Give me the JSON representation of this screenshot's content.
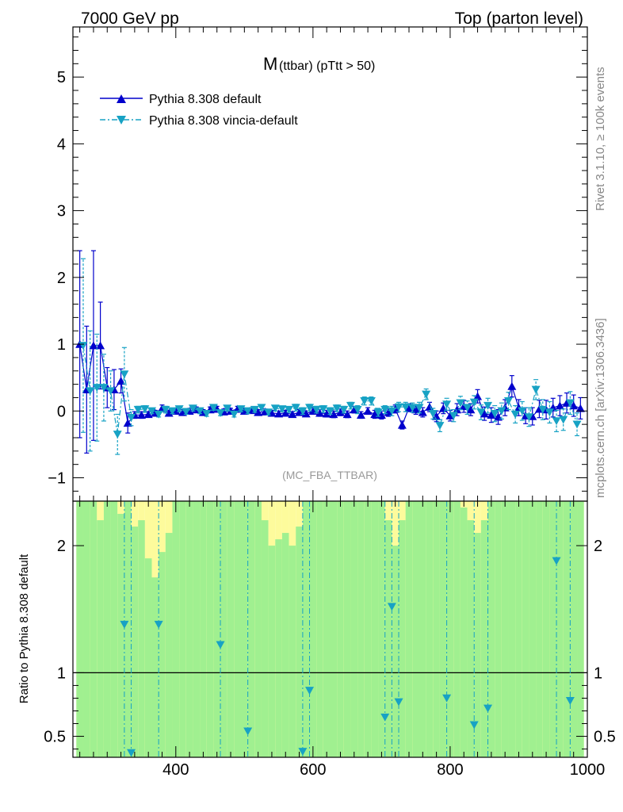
{
  "header": {
    "left": "7000 GeV pp",
    "right": "Top (parton level)"
  },
  "side_labels": {
    "rivet": "Rivet 3.1.10, ≥ 100k events",
    "mcplots": "mcplots.cern.ch [arXiv:1306.3436]"
  },
  "watermark": "(MC_FBA_TTBAR)",
  "chart_data": [
    {
      "type": "line",
      "title_main": "M",
      "title_sub": "(ttbar) (pTtt > 50)",
      "xlim": [
        250,
        1000
      ],
      "ylim": [
        -1.35,
        5.75
      ],
      "xticks": [
        400,
        600,
        800,
        1000
      ],
      "yticks": [
        -1,
        0,
        1,
        2,
        3,
        4,
        5
      ],
      "legend": "top-left",
      "series": [
        {
          "name": "Pythia 8.308 default",
          "color": "#0000cc",
          "marker": "triangle-up",
          "line": "solid",
          "x": [
            260,
            270,
            280,
            290,
            300,
            310,
            320,
            330,
            340,
            350,
            360,
            370,
            380,
            390,
            400,
            410,
            420,
            430,
            440,
            450,
            460,
            470,
            480,
            490,
            500,
            510,
            520,
            530,
            540,
            550,
            560,
            570,
            580,
            590,
            600,
            610,
            620,
            630,
            640,
            650,
            660,
            670,
            680,
            690,
            700,
            710,
            720,
            730,
            740,
            750,
            760,
            770,
            780,
            790,
            800,
            810,
            820,
            830,
            840,
            850,
            860,
            870,
            880,
            890,
            900,
            910,
            920,
            930,
            940,
            950,
            960,
            970,
            980,
            990
          ],
          "y": [
            1.0,
            0.32,
            0.98,
            0.98,
            0.35,
            0.32,
            0.45,
            -0.18,
            -0.06,
            -0.06,
            -0.05,
            -0.03,
            0.04,
            -0.03,
            0.0,
            -0.02,
            0.0,
            0.02,
            -0.02,
            0.02,
            0.03,
            -0.01,
            0.0,
            0.03,
            0.0,
            0.01,
            -0.02,
            -0.01,
            -0.03,
            -0.04,
            -0.03,
            -0.05,
            -0.02,
            -0.04,
            0.0,
            -0.03,
            -0.04,
            -0.05,
            -0.02,
            -0.05,
            0.02,
            -0.06,
            0.0,
            -0.05,
            -0.06,
            -0.02,
            0.03,
            -0.21,
            0.05,
            0.02,
            -0.02,
            0.06,
            -0.08,
            0.04,
            -0.07,
            0.02,
            0.07,
            0.02,
            0.22,
            -0.04,
            -0.06,
            -0.09,
            0.05,
            0.37,
            0.05,
            -0.07,
            -0.08,
            0.03,
            0.02,
            0.05,
            0.08,
            0.12,
            0.08,
            0.04
          ],
          "yerr": [
            1.4,
            0.95,
            1.42,
            0.65,
            0.3,
            0.3,
            0.18,
            0.15,
            0.05,
            0.05,
            0.04,
            0.04,
            0.05,
            0.04,
            0.04,
            0.04,
            0.04,
            0.04,
            0.04,
            0.04,
            0.04,
            0.04,
            0.04,
            0.04,
            0.04,
            0.04,
            0.04,
            0.04,
            0.04,
            0.04,
            0.04,
            0.04,
            0.04,
            0.04,
            0.05,
            0.05,
            0.05,
            0.05,
            0.05,
            0.05,
            0.05,
            0.05,
            0.05,
            0.06,
            0.06,
            0.06,
            0.06,
            0.06,
            0.06,
            0.07,
            0.07,
            0.07,
            0.08,
            0.08,
            0.08,
            0.09,
            0.09,
            0.09,
            0.1,
            0.1,
            0.11,
            0.11,
            0.12,
            0.16,
            0.12,
            0.12,
            0.13,
            0.13,
            0.14,
            0.14,
            0.15,
            0.15,
            0.16,
            0.16
          ]
        },
        {
          "name": "Pythia 8.308 vincia-default",
          "color": "#17a2c4",
          "marker": "triangle-down",
          "line": "dash-dot",
          "x": [
            265,
            275,
            285,
            295,
            305,
            315,
            325,
            335,
            345,
            355,
            365,
            375,
            385,
            395,
            405,
            415,
            425,
            435,
            445,
            455,
            465,
            475,
            485,
            495,
            505,
            515,
            525,
            535,
            545,
            555,
            565,
            575,
            585,
            595,
            605,
            615,
            625,
            635,
            645,
            655,
            665,
            675,
            685,
            695,
            705,
            715,
            725,
            735,
            745,
            755,
            765,
            775,
            785,
            795,
            805,
            815,
            825,
            835,
            845,
            855,
            865,
            875,
            885,
            895,
            905,
            915,
            925,
            935,
            945,
            955,
            965,
            975,
            985
          ],
          "y": [
            0.98,
            0.3,
            0.35,
            0.35,
            0.3,
            -0.35,
            0.55,
            -0.1,
            0.02,
            0.03,
            0.0,
            -0.05,
            0.02,
            0.0,
            0.03,
            -0.01,
            0.04,
            0.0,
            -0.04,
            0.05,
            -0.03,
            0.04,
            -0.05,
            0.03,
            0.0,
            0.02,
            0.05,
            -0.02,
            0.04,
            0.03,
            0.02,
            0.05,
            0.0,
            0.05,
            0.02,
            0.03,
            0.0,
            0.04,
            0.02,
            0.08,
            0.02,
            0.15,
            0.15,
            -0.02,
            0.02,
            0.0,
            0.06,
            0.06,
            0.05,
            0.05,
            0.25,
            -0.04,
            -0.22,
            0.1,
            -0.07,
            0.12,
            0.05,
            0.13,
            -0.02,
            0.08,
            -0.04,
            0.0,
            0.15,
            -0.05,
            0.0,
            -0.09,
            0.32,
            0.02,
            -0.02,
            -0.15,
            -0.13,
            0.12,
            -0.2
          ],
          "yerr": [
            1.3,
            0.9,
            0.8,
            0.5,
            0.3,
            0.3,
            0.4,
            0.12,
            0.05,
            0.05,
            0.04,
            0.04,
            0.05,
            0.04,
            0.04,
            0.04,
            0.04,
            0.04,
            0.04,
            0.04,
            0.04,
            0.04,
            0.04,
            0.04,
            0.04,
            0.04,
            0.04,
            0.04,
            0.04,
            0.04,
            0.04,
            0.05,
            0.05,
            0.05,
            0.05,
            0.05,
            0.05,
            0.05,
            0.05,
            0.05,
            0.06,
            0.06,
            0.06,
            0.06,
            0.06,
            0.07,
            0.07,
            0.07,
            0.07,
            0.08,
            0.08,
            0.08,
            0.09,
            0.09,
            0.09,
            0.1,
            0.1,
            0.1,
            0.11,
            0.11,
            0.12,
            0.12,
            0.13,
            0.13,
            0.14,
            0.14,
            0.15,
            0.15,
            0.16,
            0.16,
            0.16,
            0.17,
            0.17
          ]
        }
      ]
    },
    {
      "type": "line",
      "ylabel": "Ratio to Pythia 8.308 default",
      "xlim": [
        250,
        1000
      ],
      "ylim": [
        0.335,
        2.35
      ],
      "xticks": [
        400,
        600,
        800,
        1000
      ],
      "yticks": [
        0.5,
        1,
        2
      ],
      "reference_line": 1,
      "band_colors": {
        "inner": "#a0f090",
        "outer": "#fdfb9c"
      },
      "series": [
        {
          "name": "Pythia 8.308 vincia-default",
          "color": "#17a2c4",
          "marker": "triangle-down",
          "line": "dash-dot",
          "x": [
            325,
            335,
            375,
            465,
            505,
            585,
            595,
            705,
            715,
            725,
            795,
            835,
            855,
            955,
            975
          ],
          "y": [
            1.38,
            0.37,
            1.38,
            1.22,
            0.54,
            0.38,
            0.86,
            0.65,
            1.52,
            0.77,
            0.8,
            0.59,
            0.72,
            1.88,
            0.78
          ]
        }
      ],
      "bands": [
        {
          "x0": 255,
          "x1": 265,
          "outer": 2.35,
          "inner": 2.35
        },
        {
          "x0": 265,
          "x1": 275,
          "outer": 2.35,
          "inner": 2.35
        },
        {
          "x0": 275,
          "x1": 285,
          "outer": 2.35,
          "inner": 2.35
        },
        {
          "x0": 285,
          "x1": 295,
          "outer": 2.35,
          "inner": 2.2
        },
        {
          "x0": 295,
          "x1": 305,
          "outer": 2.35,
          "inner": 2.35
        },
        {
          "x0": 305,
          "x1": 315,
          "outer": 2.35,
          "inner": 2.35
        },
        {
          "x0": 315,
          "x1": 325,
          "outer": 2.35,
          "inner": 2.25
        },
        {
          "x0": 325,
          "x1": 335,
          "outer": 2.35,
          "inner": 2.35
        },
        {
          "x0": 335,
          "x1": 345,
          "outer": 2.35,
          "inner": 2.15
        },
        {
          "x0": 345,
          "x1": 355,
          "outer": 2.35,
          "inner": 2.2
        },
        {
          "x0": 355,
          "x1": 365,
          "outer": 2.35,
          "inner": 1.9
        },
        {
          "x0": 365,
          "x1": 375,
          "outer": 2.35,
          "inner": 1.75
        },
        {
          "x0": 375,
          "x1": 385,
          "outer": 2.35,
          "inner": 1.95
        },
        {
          "x0": 385,
          "x1": 395,
          "outer": 2.35,
          "inner": 2.1
        },
        {
          "x0": 395,
          "x1": 405,
          "outer": 2.35,
          "inner": 2.35
        },
        {
          "x0": 405,
          "x1": 415,
          "outer": 2.35,
          "inner": 2.35
        },
        {
          "x0": 415,
          "x1": 425,
          "outer": 2.35,
          "inner": 2.35
        },
        {
          "x0": 425,
          "x1": 435,
          "outer": 2.35,
          "inner": 2.35
        },
        {
          "x0": 435,
          "x1": 445,
          "outer": 2.35,
          "inner": 2.35
        },
        {
          "x0": 445,
          "x1": 455,
          "outer": 2.35,
          "inner": 2.35
        },
        {
          "x0": 455,
          "x1": 465,
          "outer": 2.35,
          "inner": 2.35
        },
        {
          "x0": 465,
          "x1": 475,
          "outer": 2.35,
          "inner": 2.35
        },
        {
          "x0": 475,
          "x1": 485,
          "outer": 2.35,
          "inner": 2.35
        },
        {
          "x0": 485,
          "x1": 495,
          "outer": 2.35,
          "inner": 2.35
        },
        {
          "x0": 495,
          "x1": 505,
          "outer": 2.35,
          "inner": 2.35
        },
        {
          "x0": 505,
          "x1": 515,
          "outer": 2.35,
          "inner": 2.35
        },
        {
          "x0": 515,
          "x1": 525,
          "outer": 2.35,
          "inner": 2.35
        },
        {
          "x0": 525,
          "x1": 535,
          "outer": 2.35,
          "inner": 2.2
        },
        {
          "x0": 535,
          "x1": 545,
          "outer": 2.35,
          "inner": 2.0
        },
        {
          "x0": 545,
          "x1": 555,
          "outer": 2.35,
          "inner": 2.05
        },
        {
          "x0": 555,
          "x1": 565,
          "outer": 2.35,
          "inner": 2.1
        },
        {
          "x0": 565,
          "x1": 575,
          "outer": 2.35,
          "inner": 2.0
        },
        {
          "x0": 575,
          "x1": 585,
          "outer": 2.35,
          "inner": 2.15
        },
        {
          "x0": 585,
          "x1": 595,
          "outer": 2.35,
          "inner": 2.35
        },
        {
          "x0": 595,
          "x1": 605,
          "outer": 2.35,
          "inner": 2.35
        },
        {
          "x0": 605,
          "x1": 615,
          "outer": 2.35,
          "inner": 2.35
        },
        {
          "x0": 615,
          "x1": 625,
          "outer": 2.35,
          "inner": 2.35
        },
        {
          "x0": 625,
          "x1": 635,
          "outer": 2.35,
          "inner": 2.35
        },
        {
          "x0": 635,
          "x1": 645,
          "outer": 2.35,
          "inner": 2.35
        },
        {
          "x0": 645,
          "x1": 655,
          "outer": 2.35,
          "inner": 2.35
        },
        {
          "x0": 655,
          "x1": 665,
          "outer": 2.35,
          "inner": 2.35
        },
        {
          "x0": 665,
          "x1": 675,
          "outer": 2.35,
          "inner": 2.35
        },
        {
          "x0": 675,
          "x1": 685,
          "outer": 2.35,
          "inner": 2.35
        },
        {
          "x0": 685,
          "x1": 695,
          "outer": 2.35,
          "inner": 2.35
        },
        {
          "x0": 695,
          "x1": 705,
          "outer": 2.35,
          "inner": 2.35
        },
        {
          "x0": 705,
          "x1": 715,
          "outer": 2.35,
          "inner": 2.2
        },
        {
          "x0": 715,
          "x1": 725,
          "outer": 2.35,
          "inner": 2.0
        },
        {
          "x0": 725,
          "x1": 735,
          "outer": 2.35,
          "inner": 2.2
        },
        {
          "x0": 735,
          "x1": 745,
          "outer": 2.35,
          "inner": 2.35
        },
        {
          "x0": 745,
          "x1": 755,
          "outer": 2.35,
          "inner": 2.35
        },
        {
          "x0": 755,
          "x1": 765,
          "outer": 2.35,
          "inner": 2.35
        },
        {
          "x0": 765,
          "x1": 775,
          "outer": 2.35,
          "inner": 2.35
        },
        {
          "x0": 775,
          "x1": 785,
          "outer": 2.35,
          "inner": 2.35
        },
        {
          "x0": 785,
          "x1": 795,
          "outer": 2.35,
          "inner": 2.35
        },
        {
          "x0": 795,
          "x1": 805,
          "outer": 2.35,
          "inner": 2.35
        },
        {
          "x0": 805,
          "x1": 815,
          "outer": 2.35,
          "inner": 2.35
        },
        {
          "x0": 815,
          "x1": 825,
          "outer": 2.35,
          "inner": 2.3
        },
        {
          "x0": 825,
          "x1": 835,
          "outer": 2.35,
          "inner": 2.2
        },
        {
          "x0": 835,
          "x1": 845,
          "outer": 2.35,
          "inner": 2.1
        },
        {
          "x0": 845,
          "x1": 855,
          "outer": 2.35,
          "inner": 2.2
        },
        {
          "x0": 855,
          "x1": 865,
          "outer": 2.35,
          "inner": 2.35
        },
        {
          "x0": 865,
          "x1": 875,
          "outer": 2.35,
          "inner": 2.35
        },
        {
          "x0": 875,
          "x1": 885,
          "outer": 2.35,
          "inner": 2.35
        },
        {
          "x0": 885,
          "x1": 895,
          "outer": 2.35,
          "inner": 2.35
        },
        {
          "x0": 895,
          "x1": 905,
          "outer": 2.35,
          "inner": 2.35
        },
        {
          "x0": 905,
          "x1": 915,
          "outer": 2.35,
          "inner": 2.35
        },
        {
          "x0": 915,
          "x1": 925,
          "outer": 2.35,
          "inner": 2.35
        },
        {
          "x0": 925,
          "x1": 935,
          "outer": 2.35,
          "inner": 2.35
        },
        {
          "x0": 935,
          "x1": 945,
          "outer": 2.35,
          "inner": 2.35
        },
        {
          "x0": 945,
          "x1": 955,
          "outer": 2.35,
          "inner": 2.35
        },
        {
          "x0": 955,
          "x1": 965,
          "outer": 2.35,
          "inner": 2.35
        },
        {
          "x0": 965,
          "x1": 975,
          "outer": 2.35,
          "inner": 2.35
        },
        {
          "x0": 975,
          "x1": 985,
          "outer": 2.35,
          "inner": 2.35
        },
        {
          "x0": 985,
          "x1": 995,
          "outer": 2.35,
          "inner": 2.35
        }
      ]
    }
  ]
}
